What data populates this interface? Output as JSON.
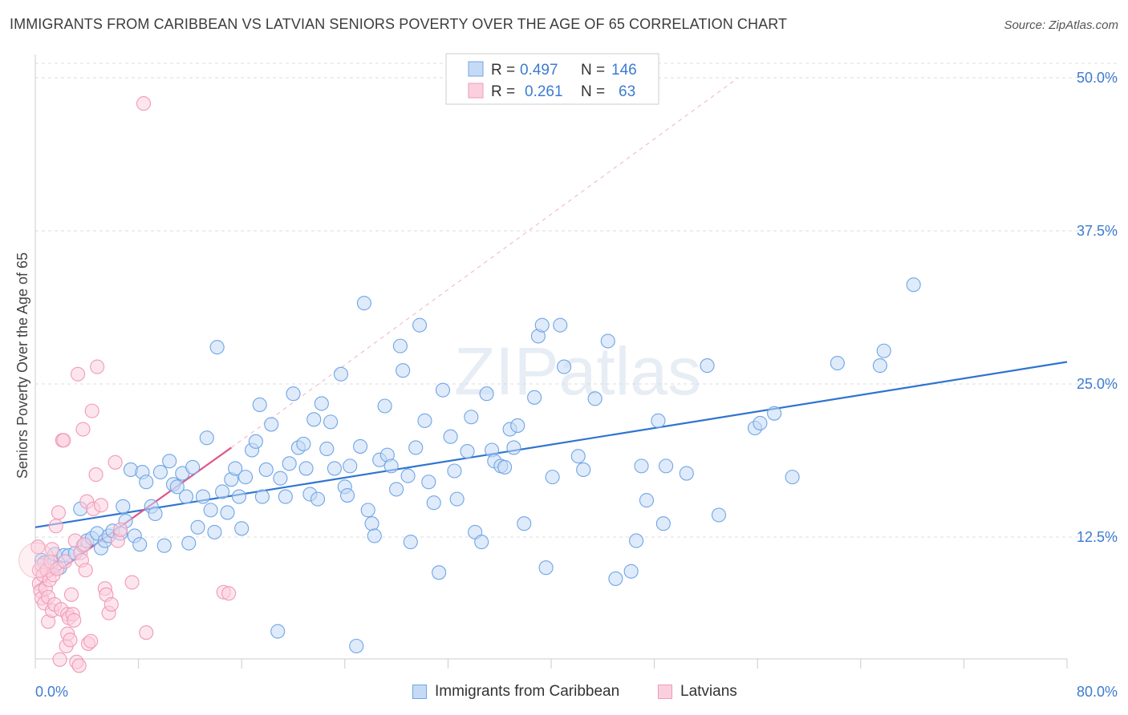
{
  "title": "IMMIGRANTS FROM CARIBBEAN VS LATVIAN SENIORS POVERTY OVER THE AGE OF 65 CORRELATION CHART",
  "source": "Source: ZipAtlas.com",
  "watermark": "ZIPatlas",
  "colors": {
    "blue": "#6fa5e6",
    "blue_line": "#2f74d0",
    "pink": "#f19ab7",
    "pink_line": "#e0558a",
    "axis_text": "#3d7bd0",
    "grid": "#dddddd"
  },
  "legend_box": {
    "rows": [
      {
        "r_label": "R =",
        "r_value": "0.497",
        "n_label": "N =",
        "n_value": "146"
      },
      {
        "r_label": "R =",
        "r_value": "0.261",
        "n_label": "N =",
        "n_value": "63"
      }
    ]
  },
  "chart_data": {
    "type": "scatter",
    "title": "IMMIGRANTS FROM CARIBBEAN VS LATVIAN SENIORS POVERTY OVER THE AGE OF 65 CORRELATION CHART",
    "xlabel": "",
    "ylabel": "Seniors Poverty Over the Age of 65",
    "xlim": [
      0,
      80
    ],
    "ylim": [
      0,
      50
    ],
    "x_tick_labels": [
      "0.0%",
      "80.0%"
    ],
    "y_ticks": [
      12.5,
      25.0,
      37.5,
      50.0
    ],
    "y_tick_labels": [
      "12.5%",
      "25.0%",
      "37.5%",
      "50.0%"
    ],
    "grid": true,
    "legend_placement": "bottom",
    "series": [
      {
        "name": "Immigrants from Caribbean",
        "R": 0.497,
        "N": 146,
        "trend": {
          "x": [
            0,
            80
          ],
          "y": [
            13.3,
            26.8
          ]
        },
        "points": [
          [
            0.5,
            10.6
          ],
          [
            0.7,
            10.4
          ],
          [
            1.2,
            10.2
          ],
          [
            1.5,
            11.1
          ],
          [
            1.9,
            10.0
          ],
          [
            2.2,
            11.0
          ],
          [
            2.6,
            11.0
          ],
          [
            3.1,
            11.2
          ],
          [
            3.5,
            14.8
          ],
          [
            3.7,
            11.8
          ],
          [
            4.0,
            12.2
          ],
          [
            4.4,
            12.4
          ],
          [
            4.8,
            12.8
          ],
          [
            5.1,
            11.6
          ],
          [
            5.4,
            12.2
          ],
          [
            5.7,
            12.6
          ],
          [
            6.0,
            13.0
          ],
          [
            6.6,
            12.8
          ],
          [
            6.8,
            15.0
          ],
          [
            7.0,
            13.8
          ],
          [
            7.4,
            18.0
          ],
          [
            7.7,
            12.6
          ],
          [
            8.1,
            11.9
          ],
          [
            8.3,
            17.8
          ],
          [
            8.6,
            17.0
          ],
          [
            9.0,
            15.0
          ],
          [
            9.3,
            14.4
          ],
          [
            9.7,
            17.8
          ],
          [
            10.0,
            11.8
          ],
          [
            10.4,
            18.7
          ],
          [
            10.7,
            16.8
          ],
          [
            11.0,
            16.6
          ],
          [
            11.4,
            17.7
          ],
          [
            11.7,
            15.8
          ],
          [
            11.9,
            12.0
          ],
          [
            12.2,
            18.2
          ],
          [
            12.6,
            13.3
          ],
          [
            13.0,
            15.8
          ],
          [
            13.3,
            20.6
          ],
          [
            13.6,
            14.7
          ],
          [
            13.9,
            12.9
          ],
          [
            14.1,
            28.0
          ],
          [
            14.5,
            16.2
          ],
          [
            14.9,
            14.5
          ],
          [
            15.2,
            17.2
          ],
          [
            15.5,
            18.1
          ],
          [
            15.8,
            15.8
          ],
          [
            16.0,
            13.2
          ],
          [
            16.3,
            17.4
          ],
          [
            16.8,
            19.6
          ],
          [
            17.1,
            20.3
          ],
          [
            17.4,
            23.3
          ],
          [
            17.6,
            15.8
          ],
          [
            17.9,
            18.0
          ],
          [
            18.3,
            21.7
          ],
          [
            18.8,
            4.8
          ],
          [
            19.0,
            17.3
          ],
          [
            19.4,
            15.8
          ],
          [
            19.7,
            18.5
          ],
          [
            20.0,
            24.2
          ],
          [
            20.4,
            19.8
          ],
          [
            20.8,
            20.1
          ],
          [
            21.0,
            18.1
          ],
          [
            21.3,
            16.0
          ],
          [
            21.6,
            22.1
          ],
          [
            21.9,
            15.6
          ],
          [
            22.2,
            23.4
          ],
          [
            22.6,
            19.7
          ],
          [
            22.9,
            21.9
          ],
          [
            23.2,
            18.1
          ],
          [
            23.7,
            25.8
          ],
          [
            24.0,
            16.6
          ],
          [
            24.2,
            15.9
          ],
          [
            24.4,
            18.3
          ],
          [
            24.9,
            3.6
          ],
          [
            25.2,
            19.9
          ],
          [
            25.5,
            31.6
          ],
          [
            25.8,
            14.7
          ],
          [
            26.1,
            13.6
          ],
          [
            26.3,
            12.6
          ],
          [
            26.7,
            18.8
          ],
          [
            27.1,
            23.2
          ],
          [
            27.3,
            19.2
          ],
          [
            27.6,
            18.3
          ],
          [
            28.0,
            16.4
          ],
          [
            28.3,
            28.1
          ],
          [
            28.5,
            26.1
          ],
          [
            28.9,
            17.5
          ],
          [
            29.1,
            12.1
          ],
          [
            29.5,
            19.8
          ],
          [
            29.8,
            29.8
          ],
          [
            30.2,
            22.0
          ],
          [
            30.5,
            17.0
          ],
          [
            30.9,
            15.3
          ],
          [
            31.3,
            9.6
          ],
          [
            31.6,
            24.5
          ],
          [
            32.2,
            20.7
          ],
          [
            32.5,
            17.9
          ],
          [
            32.7,
            15.6
          ],
          [
            33.5,
            19.5
          ],
          [
            33.8,
            22.3
          ],
          [
            34.1,
            12.9
          ],
          [
            34.6,
            12.1
          ],
          [
            35.0,
            24.2
          ],
          [
            35.4,
            19.6
          ],
          [
            35.6,
            18.7
          ],
          [
            36.1,
            18.3
          ],
          [
            36.4,
            18.2
          ],
          [
            36.8,
            21.3
          ],
          [
            37.1,
            19.8
          ],
          [
            37.4,
            21.6
          ],
          [
            37.9,
            13.6
          ],
          [
            38.7,
            23.9
          ],
          [
            39.0,
            28.9
          ],
          [
            39.3,
            29.8
          ],
          [
            39.6,
            10.0
          ],
          [
            40.1,
            17.4
          ],
          [
            40.7,
            29.8
          ],
          [
            41.0,
            26.4
          ],
          [
            42.1,
            19.1
          ],
          [
            42.5,
            18.0
          ],
          [
            43.4,
            23.8
          ],
          [
            44.4,
            28.5
          ],
          [
            45.0,
            9.1
          ],
          [
            46.2,
            9.7
          ],
          [
            46.6,
            12.2
          ],
          [
            47.0,
            18.3
          ],
          [
            47.4,
            15.5
          ],
          [
            48.3,
            22.0
          ],
          [
            48.7,
            13.6
          ],
          [
            48.9,
            18.3
          ],
          [
            50.5,
            17.7
          ],
          [
            52.1,
            26.5
          ],
          [
            53.0,
            14.3
          ],
          [
            55.8,
            21.4
          ],
          [
            56.2,
            21.8
          ],
          [
            57.3,
            22.6
          ],
          [
            58.7,
            17.4
          ],
          [
            62.2,
            26.7
          ],
          [
            65.5,
            26.5
          ],
          [
            65.8,
            27.7
          ],
          [
            68.1,
            33.1
          ]
        ]
      },
      {
        "name": "Latvians",
        "R": 0.261,
        "N": 63,
        "trend": {
          "x": [
            0,
            15.2
          ],
          "y": [
            8.4,
            19.8
          ]
        },
        "points": [
          [
            0.2,
            11.7
          ],
          [
            0.3,
            9.8
          ],
          [
            0.3,
            8.7
          ],
          [
            0.4,
            8.1
          ],
          [
            0.5,
            7.5
          ],
          [
            0.5,
            10.2
          ],
          [
            0.6,
            9.4
          ],
          [
            0.7,
            7.1
          ],
          [
            0.8,
            8.3
          ],
          [
            0.9,
            9.8
          ],
          [
            1.0,
            7.6
          ],
          [
            1.0,
            5.6
          ],
          [
            1.1,
            9.0
          ],
          [
            1.2,
            10.5
          ],
          [
            1.3,
            6.5
          ],
          [
            1.3,
            11.5
          ],
          [
            1.4,
            9.4
          ],
          [
            1.5,
            7.0
          ],
          [
            1.6,
            13.4
          ],
          [
            1.7,
            9.9
          ],
          [
            1.8,
            14.5
          ],
          [
            1.9,
            2.5
          ],
          [
            2.0,
            6.6
          ],
          [
            2.1,
            20.4
          ],
          [
            2.2,
            20.4
          ],
          [
            2.3,
            10.5
          ],
          [
            2.4,
            3.6
          ],
          [
            2.5,
            4.6
          ],
          [
            2.5,
            6.2
          ],
          [
            2.6,
            5.9
          ],
          [
            2.7,
            4.1
          ],
          [
            2.8,
            7.8
          ],
          [
            2.9,
            6.2
          ],
          [
            3.0,
            5.7
          ],
          [
            3.1,
            12.2
          ],
          [
            3.2,
            2.3
          ],
          [
            3.3,
            25.8
          ],
          [
            3.4,
            2.0
          ],
          [
            3.5,
            11.2
          ],
          [
            3.6,
            10.6
          ],
          [
            3.7,
            21.3
          ],
          [
            3.8,
            11.9
          ],
          [
            3.9,
            9.8
          ],
          [
            4.0,
            15.4
          ],
          [
            4.1,
            3.8
          ],
          [
            4.3,
            4.0
          ],
          [
            4.4,
            22.8
          ],
          [
            4.5,
            14.8
          ],
          [
            4.7,
            17.6
          ],
          [
            4.8,
            26.4
          ],
          [
            5.1,
            15.1
          ],
          [
            5.4,
            8.3
          ],
          [
            5.5,
            7.8
          ],
          [
            5.7,
            6.3
          ],
          [
            5.9,
            7.0
          ],
          [
            6.2,
            18.6
          ],
          [
            6.4,
            12.2
          ],
          [
            6.6,
            13.1
          ],
          [
            7.5,
            8.8
          ],
          [
            8.4,
            47.9
          ],
          [
            8.6,
            4.7
          ],
          [
            14.6,
            8.0
          ],
          [
            15.0,
            7.9
          ]
        ]
      }
    ]
  }
}
